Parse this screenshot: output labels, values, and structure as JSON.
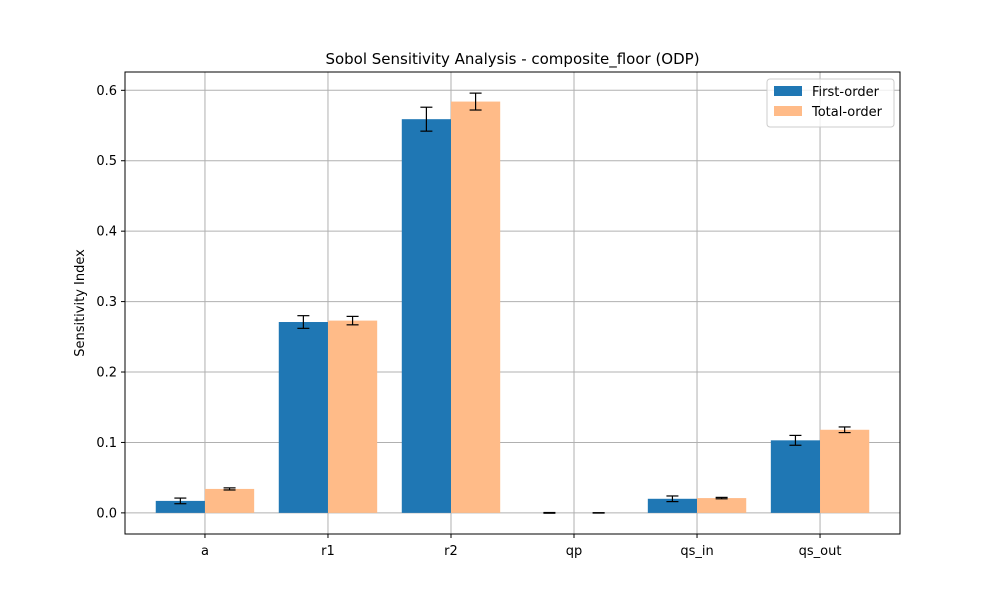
{
  "chart_data": {
    "type": "bar",
    "title": "Sobol Sensitivity Analysis - composite_floor (ODP)",
    "xlabel": "",
    "ylabel": "Sensitivity Index",
    "categories": [
      "a",
      "r1",
      "r2",
      "qp",
      "qs_in",
      "qs_out"
    ],
    "ylim": [
      -0.03,
      0.626
    ],
    "yticks": [
      0.0,
      0.1,
      0.2,
      0.3,
      0.4,
      0.5,
      0.6
    ],
    "ytick_labels": [
      "0.0",
      "0.1",
      "0.2",
      "0.3",
      "0.4",
      "0.5",
      "0.6"
    ],
    "grid": true,
    "legend_position": "top-right",
    "series": [
      {
        "name": "First-order",
        "color": "#1f77b4",
        "values": [
          0.017,
          0.271,
          0.559,
          0.0,
          0.02,
          0.103
        ],
        "errors": [
          0.004,
          0.009,
          0.017,
          0.0005,
          0.004,
          0.007
        ]
      },
      {
        "name": "Total-order",
        "color": "#ffbb88",
        "values": [
          0.034,
          0.273,
          0.584,
          0.0,
          0.021,
          0.118
        ],
        "errors": [
          0.0015,
          0.006,
          0.012,
          0.0003,
          0.001,
          0.004
        ]
      }
    ]
  }
}
